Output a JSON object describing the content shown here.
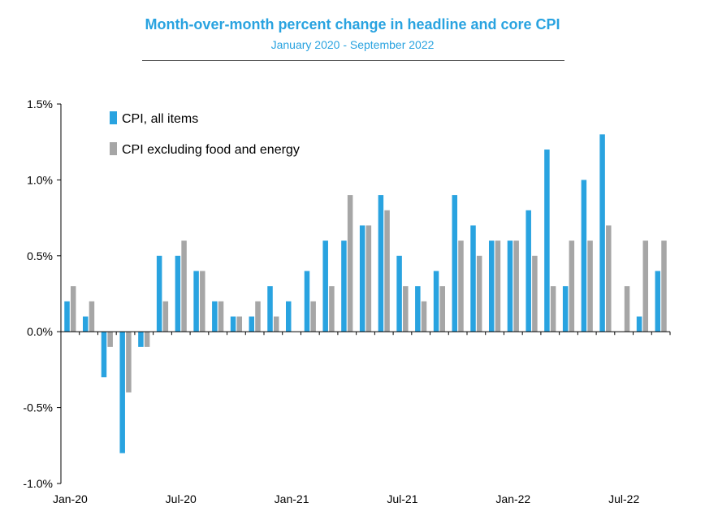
{
  "chart_data": {
    "type": "bar",
    "title": "Month-over-month percent change in headline and core CPI",
    "subtitle": "January 2020 - September 2022",
    "ylim": [
      -1.0,
      1.5
    ],
    "yticks": [
      "1.5%",
      "1.0%",
      "0.5%",
      "0.0%",
      "-0.5%",
      "-1.0%"
    ],
    "ytick_values": [
      1.5,
      1.0,
      0.5,
      0.0,
      -0.5,
      -1.0
    ],
    "xtick_labels": [
      "Jan-20",
      "Jul-20",
      "Jan-21",
      "Jul-21",
      "Jan-22",
      "Jul-22"
    ],
    "xtick_positions": [
      0,
      6,
      12,
      18,
      24,
      30
    ],
    "legend_position": "top-left",
    "grid": false,
    "series": [
      {
        "name": "CPI, all items",
        "color": "#29a3e0",
        "values": [
          0.2,
          0.1,
          -0.3,
          -0.8,
          -0.1,
          0.5,
          0.5,
          0.4,
          0.2,
          0.1,
          0.1,
          0.3,
          0.2,
          0.4,
          0.6,
          0.6,
          0.7,
          0.9,
          0.5,
          0.3,
          0.4,
          0.9,
          0.7,
          0.6,
          0.6,
          0.8,
          1.2,
          0.3,
          1.0,
          1.3,
          0.0,
          0.1,
          0.4
        ]
      },
      {
        "name": "CPI excluding food and energy",
        "color": "#a6a6a6",
        "values": [
          0.3,
          0.2,
          -0.1,
          -0.4,
          -0.1,
          0.2,
          0.6,
          0.4,
          0.2,
          0.1,
          0.2,
          0.1,
          0.0,
          0.2,
          0.3,
          0.9,
          0.7,
          0.8,
          0.3,
          0.2,
          0.3,
          0.6,
          0.5,
          0.6,
          0.6,
          0.5,
          0.3,
          0.6,
          0.6,
          0.7,
          0.3,
          0.6,
          0.6
        ]
      }
    ]
  }
}
